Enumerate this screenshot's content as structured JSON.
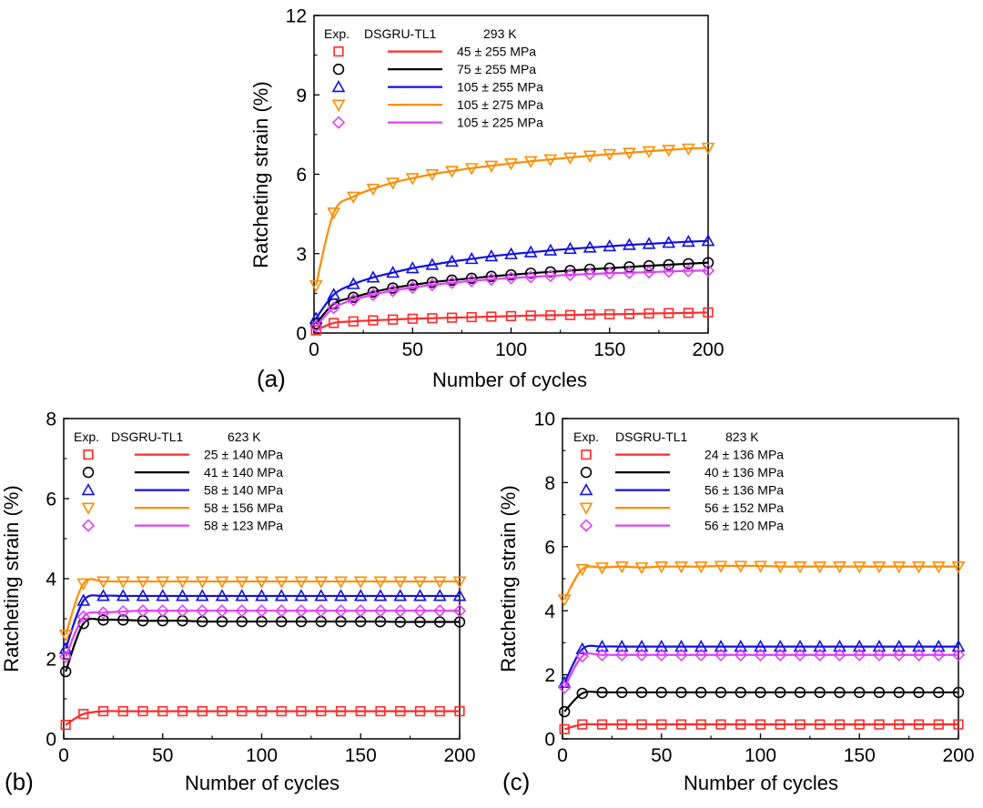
{
  "colors": {
    "s1": "#ff2a2a",
    "s2": "#000000",
    "s3": "#1010e0",
    "s4": "#ff8c00",
    "s5": "#e040fb"
  },
  "markers": [
    "square",
    "circle",
    "triangle-up",
    "triangle-down",
    "diamond"
  ],
  "chart_data": [
    {
      "panel_label": "(a)",
      "type": "line",
      "xlabel": "Number of cycles",
      "ylabel": "Ratcheting strain (%)",
      "xlim": [
        0,
        200
      ],
      "ylim": [
        0,
        12
      ],
      "xticks": [
        "0",
        "50",
        "100",
        "150",
        "200"
      ],
      "yticks": [
        "0",
        "3",
        "6",
        "9",
        "12"
      ],
      "legend": {
        "header_exp": "Exp.",
        "header_model": "DSGRU-TL1",
        "temperature": "293 K",
        "placement": "top-left",
        "labels": [
          "45 ± 255 MPa",
          "75 ± 255 MPa",
          "105 ± 255 MPa",
          "105 ± 275 MPa",
          "105 ± 225 MPa"
        ]
      },
      "x": [
        1,
        10,
        20,
        30,
        40,
        50,
        60,
        70,
        80,
        90,
        100,
        110,
        120,
        130,
        140,
        150,
        160,
        170,
        180,
        190,
        200
      ],
      "series": [
        {
          "name": "45 ± 255 MPa",
          "values": [
            0.1,
            0.38,
            0.44,
            0.48,
            0.51,
            0.54,
            0.56,
            0.58,
            0.6,
            0.62,
            0.64,
            0.66,
            0.67,
            0.68,
            0.7,
            0.71,
            0.72,
            0.74,
            0.75,
            0.76,
            0.78
          ]
        },
        {
          "name": "75 ± 255 MPa",
          "values": [
            0.35,
            1.1,
            1.35,
            1.55,
            1.7,
            1.82,
            1.92,
            2.0,
            2.07,
            2.14,
            2.2,
            2.26,
            2.31,
            2.36,
            2.41,
            2.45,
            2.5,
            2.54,
            2.58,
            2.62,
            2.66
          ]
        },
        {
          "name": "105 ± 255 MPa",
          "values": [
            0.55,
            1.45,
            1.85,
            2.1,
            2.28,
            2.45,
            2.58,
            2.7,
            2.8,
            2.9,
            2.98,
            3.05,
            3.12,
            3.18,
            3.23,
            3.28,
            3.33,
            3.37,
            3.41,
            3.45,
            3.48
          ]
        },
        {
          "name": "105 ± 275 MPa",
          "values": [
            1.8,
            4.55,
            5.15,
            5.45,
            5.68,
            5.85,
            6.0,
            6.12,
            6.23,
            6.32,
            6.41,
            6.49,
            6.56,
            6.63,
            6.7,
            6.76,
            6.81,
            6.87,
            6.92,
            6.97,
            7.0
          ]
        },
        {
          "name": "105 ± 225 MPa",
          "values": [
            0.25,
            0.95,
            1.25,
            1.45,
            1.6,
            1.72,
            1.82,
            1.9,
            1.97,
            2.03,
            2.08,
            2.12,
            2.16,
            2.2,
            2.23,
            2.26,
            2.28,
            2.3,
            2.33,
            2.35,
            2.36
          ]
        }
      ]
    },
    {
      "panel_label": "(b)",
      "type": "line",
      "xlabel": "Number of cycles",
      "ylabel": "Ratcheting strain (%)",
      "xlim": [
        0,
        200
      ],
      "ylim": [
        0,
        8
      ],
      "xticks": [
        "0",
        "50",
        "100",
        "150",
        "200"
      ],
      "yticks": [
        "0",
        "2",
        "4",
        "6",
        "8"
      ],
      "legend": {
        "header_exp": "Exp.",
        "header_model": "DSGRU-TL1",
        "temperature": "623 K",
        "placement": "top-left",
        "labels": [
          "25 ± 140 MPa",
          "41 ± 140 MPa",
          "58 ± 140 MPa",
          "58 ± 156 MPa",
          "58 ± 123 MPa"
        ]
      },
      "x": [
        1,
        10,
        20,
        30,
        40,
        50,
        60,
        70,
        80,
        90,
        100,
        110,
        120,
        130,
        140,
        150,
        160,
        170,
        180,
        190,
        200
      ],
      "series": [
        {
          "name": "25 ± 140 MPa",
          "values": [
            0.35,
            0.62,
            0.69,
            0.69,
            0.69,
            0.69,
            0.69,
            0.69,
            0.69,
            0.69,
            0.69,
            0.69,
            0.69,
            0.69,
            0.69,
            0.69,
            0.69,
            0.69,
            0.69,
            0.69,
            0.69
          ]
        },
        {
          "name": "41 ± 140 MPa",
          "values": [
            1.68,
            2.88,
            2.97,
            2.97,
            2.95,
            2.95,
            2.95,
            2.93,
            2.93,
            2.93,
            2.93,
            2.93,
            2.93,
            2.93,
            2.93,
            2.93,
            2.93,
            2.92,
            2.92,
            2.92,
            2.92
          ]
        },
        {
          "name": "58 ± 140 MPa",
          "values": [
            2.25,
            3.45,
            3.57,
            3.57,
            3.57,
            3.57,
            3.57,
            3.57,
            3.57,
            3.57,
            3.57,
            3.57,
            3.57,
            3.57,
            3.57,
            3.57,
            3.57,
            3.57,
            3.57,
            3.57,
            3.57
          ]
        },
        {
          "name": "58 ± 156 MPa",
          "values": [
            2.6,
            3.88,
            3.93,
            3.93,
            3.93,
            3.93,
            3.93,
            3.93,
            3.93,
            3.93,
            3.93,
            3.93,
            3.93,
            3.93,
            3.93,
            3.93,
            3.93,
            3.93,
            3.93,
            3.93,
            3.93
          ]
        },
        {
          "name": "58 ± 123 MPa",
          "values": [
            2.05,
            3.05,
            3.15,
            3.18,
            3.2,
            3.2,
            3.2,
            3.2,
            3.2,
            3.2,
            3.2,
            3.2,
            3.2,
            3.2,
            3.2,
            3.2,
            3.2,
            3.2,
            3.2,
            3.2,
            3.2
          ]
        }
      ]
    },
    {
      "panel_label": "(c)",
      "type": "line",
      "xlabel": "Number of cycles",
      "ylabel": "Ratcheting strain (%)",
      "xlim": [
        0,
        200
      ],
      "ylim": [
        0,
        10
      ],
      "xticks": [
        "0",
        "50",
        "100",
        "150",
        "200"
      ],
      "yticks": [
        "0",
        "2",
        "4",
        "6",
        "8",
        "10"
      ],
      "legend": {
        "header_exp": "Exp.",
        "header_model": "DSGRU-TL1",
        "temperature": "823 K",
        "placement": "top-left",
        "labels": [
          "24 ± 136 MPa",
          "40 ± 136 MPa",
          "56 ± 136 MPa",
          "56 ± 152 MPa",
          "56 ± 120 MPa"
        ]
      },
      "x": [
        1,
        10,
        20,
        30,
        40,
        50,
        60,
        70,
        80,
        90,
        100,
        110,
        120,
        130,
        140,
        150,
        160,
        170,
        180,
        190,
        200
      ],
      "series": [
        {
          "name": "24 ± 136 MPa",
          "values": [
            0.3,
            0.45,
            0.45,
            0.45,
            0.45,
            0.45,
            0.45,
            0.45,
            0.45,
            0.45,
            0.45,
            0.45,
            0.45,
            0.45,
            0.45,
            0.45,
            0.45,
            0.45,
            0.45,
            0.45,
            0.45
          ]
        },
        {
          "name": "40 ± 136 MPa",
          "values": [
            0.85,
            1.42,
            1.45,
            1.45,
            1.45,
            1.45,
            1.45,
            1.45,
            1.45,
            1.45,
            1.45,
            1.45,
            1.45,
            1.45,
            1.45,
            1.45,
            1.45,
            1.45,
            1.45,
            1.45,
            1.45
          ]
        },
        {
          "name": "56 ± 136 MPa",
          "values": [
            1.75,
            2.8,
            2.88,
            2.88,
            2.88,
            2.88,
            2.88,
            2.88,
            2.88,
            2.88,
            2.88,
            2.88,
            2.88,
            2.88,
            2.88,
            2.88,
            2.88,
            2.88,
            2.88,
            2.88,
            2.88
          ]
        },
        {
          "name": "56 ± 152 MPa",
          "values": [
            4.35,
            5.3,
            5.35,
            5.38,
            5.35,
            5.38,
            5.38,
            5.38,
            5.4,
            5.4,
            5.4,
            5.38,
            5.38,
            5.38,
            5.38,
            5.38,
            5.38,
            5.38,
            5.38,
            5.38,
            5.38
          ]
        },
        {
          "name": "56 ± 120 MPa",
          "values": [
            1.6,
            2.58,
            2.62,
            2.62,
            2.62,
            2.62,
            2.62,
            2.62,
            2.62,
            2.62,
            2.62,
            2.62,
            2.62,
            2.62,
            2.62,
            2.62,
            2.62,
            2.62,
            2.62,
            2.62,
            2.62
          ]
        }
      ]
    }
  ]
}
